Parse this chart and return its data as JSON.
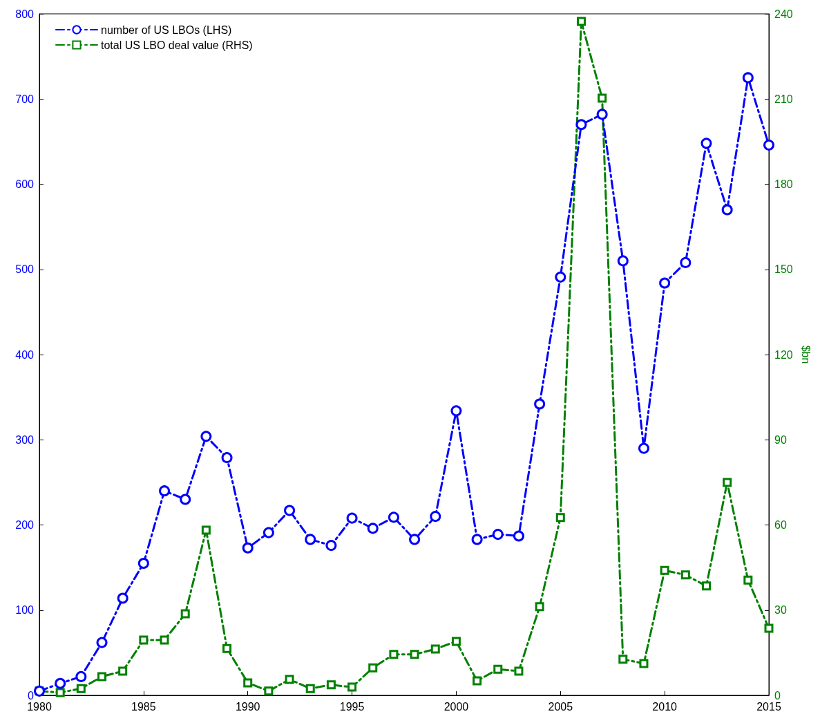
{
  "chart_data": {
    "type": "line",
    "x": [
      1980,
      1981,
      1982,
      1983,
      1984,
      1985,
      1986,
      1987,
      1988,
      1989,
      1990,
      1991,
      1992,
      1993,
      1994,
      1995,
      1996,
      1997,
      1998,
      1999,
      2000,
      2001,
      2002,
      2003,
      2004,
      2005,
      2006,
      2007,
      2008,
      2009,
      2010,
      2011,
      2012,
      2013,
      2014,
      2015
    ],
    "series": [
      {
        "name": "number of US LBOs (LHS)",
        "color": "#0000ff",
        "marker": "circle",
        "line_style": "dashed",
        "values": [
          5,
          14,
          22,
          62,
          114,
          155,
          240,
          230,
          304,
          279,
          173,
          191,
          217,
          183,
          176,
          208,
          196,
          209,
          183,
          210,
          334,
          183,
          189,
          187,
          342,
          491,
          670,
          682,
          510,
          290,
          484,
          508,
          648,
          570,
          725,
          646
        ]
      },
      {
        "name": "total US LBO deal value (RHS)",
        "color": "#008000",
        "marker": "square",
        "line_style": "dashed",
        "axis": "y2",
        "values": [
          1.5,
          1,
          2.4,
          6.6,
          8.5,
          19.5,
          19.5,
          28.7,
          58.2,
          16.5,
          4.4,
          1.5,
          5.6,
          2.4,
          3.7,
          2.9,
          9.7,
          14.4,
          14.4,
          16.3,
          19,
          5.1,
          9.2,
          8.5,
          31.2,
          62.6,
          237.3,
          210.3,
          12.7,
          11.2,
          44,
          42.4,
          38.5,
          75,
          40.6,
          23.6
        ]
      }
    ],
    "y2label": "$bn",
    "xlim": [
      1980,
      2015
    ],
    "xticks": [
      1980,
      1985,
      1990,
      1995,
      2000,
      2005,
      2010,
      2015
    ],
    "ylim": [
      0,
      800
    ],
    "yticks": [
      0,
      100,
      200,
      300,
      400,
      500,
      600,
      700,
      800
    ],
    "y2lim": [
      0,
      240
    ],
    "y2ticks": [
      0,
      30,
      60,
      90,
      120,
      150,
      180,
      210,
      240
    ],
    "grid": false,
    "legend": "top left"
  }
}
